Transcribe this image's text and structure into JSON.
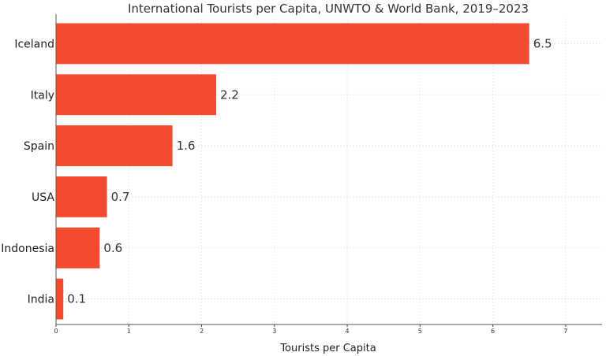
{
  "chart_data": {
    "type": "bar",
    "orientation": "horizontal",
    "title": "International Tourists per Capita, UNWTO & World Bank, 2019–2023",
    "xlabel": "Tourists per Capita",
    "ylabel": "",
    "categories": [
      "Iceland",
      "Italy",
      "Spain",
      "USA",
      "Indonesia",
      "India"
    ],
    "values": [
      6.5,
      2.2,
      1.6,
      0.7,
      0.6,
      0.1
    ],
    "data_labels": [
      "6.5",
      "2.2",
      "1.6",
      "0.7",
      "0.6",
      "0.1"
    ],
    "xlim": [
      0,
      7.5
    ],
    "xticks": [
      0,
      1,
      2,
      3,
      4,
      5,
      6,
      7
    ],
    "xtick_labels": [
      "0",
      "1",
      "2",
      "3",
      "4",
      "5",
      "6",
      "7"
    ],
    "grid": true,
    "bar_color": "#f44b2e",
    "grid_color": "#e3e3e3"
  }
}
